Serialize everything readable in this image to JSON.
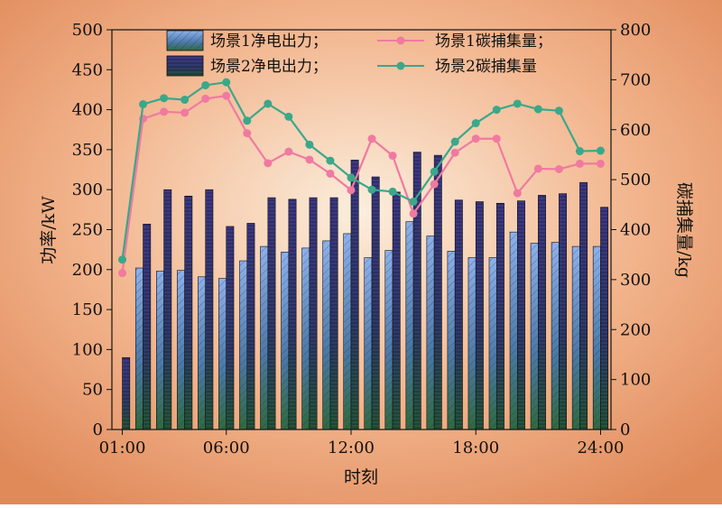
{
  "chart_data": {
    "type": "bar+line",
    "categories": [
      "01:00",
      "02:00",
      "03:00",
      "04:00",
      "05:00",
      "06:00",
      "07:00",
      "08:00",
      "09:00",
      "10:00",
      "11:00",
      "12:00",
      "13:00",
      "14:00",
      "15:00",
      "16:00",
      "17:00",
      "18:00",
      "19:00",
      "20:00",
      "21:00",
      "22:00",
      "23:00",
      "24:00"
    ],
    "x_tick_labels": [
      "01:00",
      "06:00",
      "12:00",
      "18:00",
      "24:00"
    ],
    "xlabel": "时刻",
    "ylabel_left": "功率/kW",
    "ylabel_right": "碳捕集量/kg",
    "ylim_left": [
      0,
      500
    ],
    "ylim_right": [
      0,
      800
    ],
    "yticks_left": [
      "0",
      "50",
      "100",
      "150",
      "200",
      "250",
      "300",
      "350",
      "400",
      "450",
      "500"
    ],
    "yticks_right": [
      "0",
      "100",
      "200",
      "300",
      "400",
      "500",
      "600",
      "700",
      "800"
    ],
    "bar_series": [
      {
        "name": "场景1净电出力；",
        "axis": "left",
        "color_top": "#7fa3e0",
        "color_bottom": "#2f6a45",
        "values": [
          0,
          202,
          198,
          199,
          191,
          189,
          211,
          229,
          222,
          227,
          236,
          245,
          215,
          224,
          260,
          242,
          223,
          215,
          215,
          247,
          233,
          234,
          229,
          229
        ]
      },
      {
        "name": "场景2净电出力；",
        "axis": "left",
        "color_top": "#3f3a86",
        "color_bottom": "#2a5a3a",
        "values": [
          90,
          257,
          300,
          292,
          300,
          254,
          258,
          290,
          288,
          290,
          290,
          337,
          316,
          297,
          347,
          343,
          287,
          285,
          283,
          286,
          293,
          295,
          309,
          278
        ]
      }
    ],
    "line_series": [
      {
        "name": "场景1碳捕集量；",
        "axis": "right",
        "color": "#f07aa0",
        "values": [
          313,
          622,
          636,
          634,
          662,
          668,
          593,
          533,
          556,
          540,
          512,
          479,
          582,
          548,
          432,
          491,
          554,
          582,
          582,
          473,
          522,
          521,
          532,
          532
        ]
      },
      {
        "name": "场景2碳捕集量",
        "axis": "right",
        "color": "#3aa88a",
        "values": [
          340,
          651,
          663,
          660,
          689,
          695,
          618,
          652,
          626,
          570,
          538,
          504,
          480,
          476,
          456,
          516,
          576,
          613,
          640,
          652,
          641,
          638,
          557,
          558
        ]
      }
    ],
    "legend_position": "top"
  }
}
